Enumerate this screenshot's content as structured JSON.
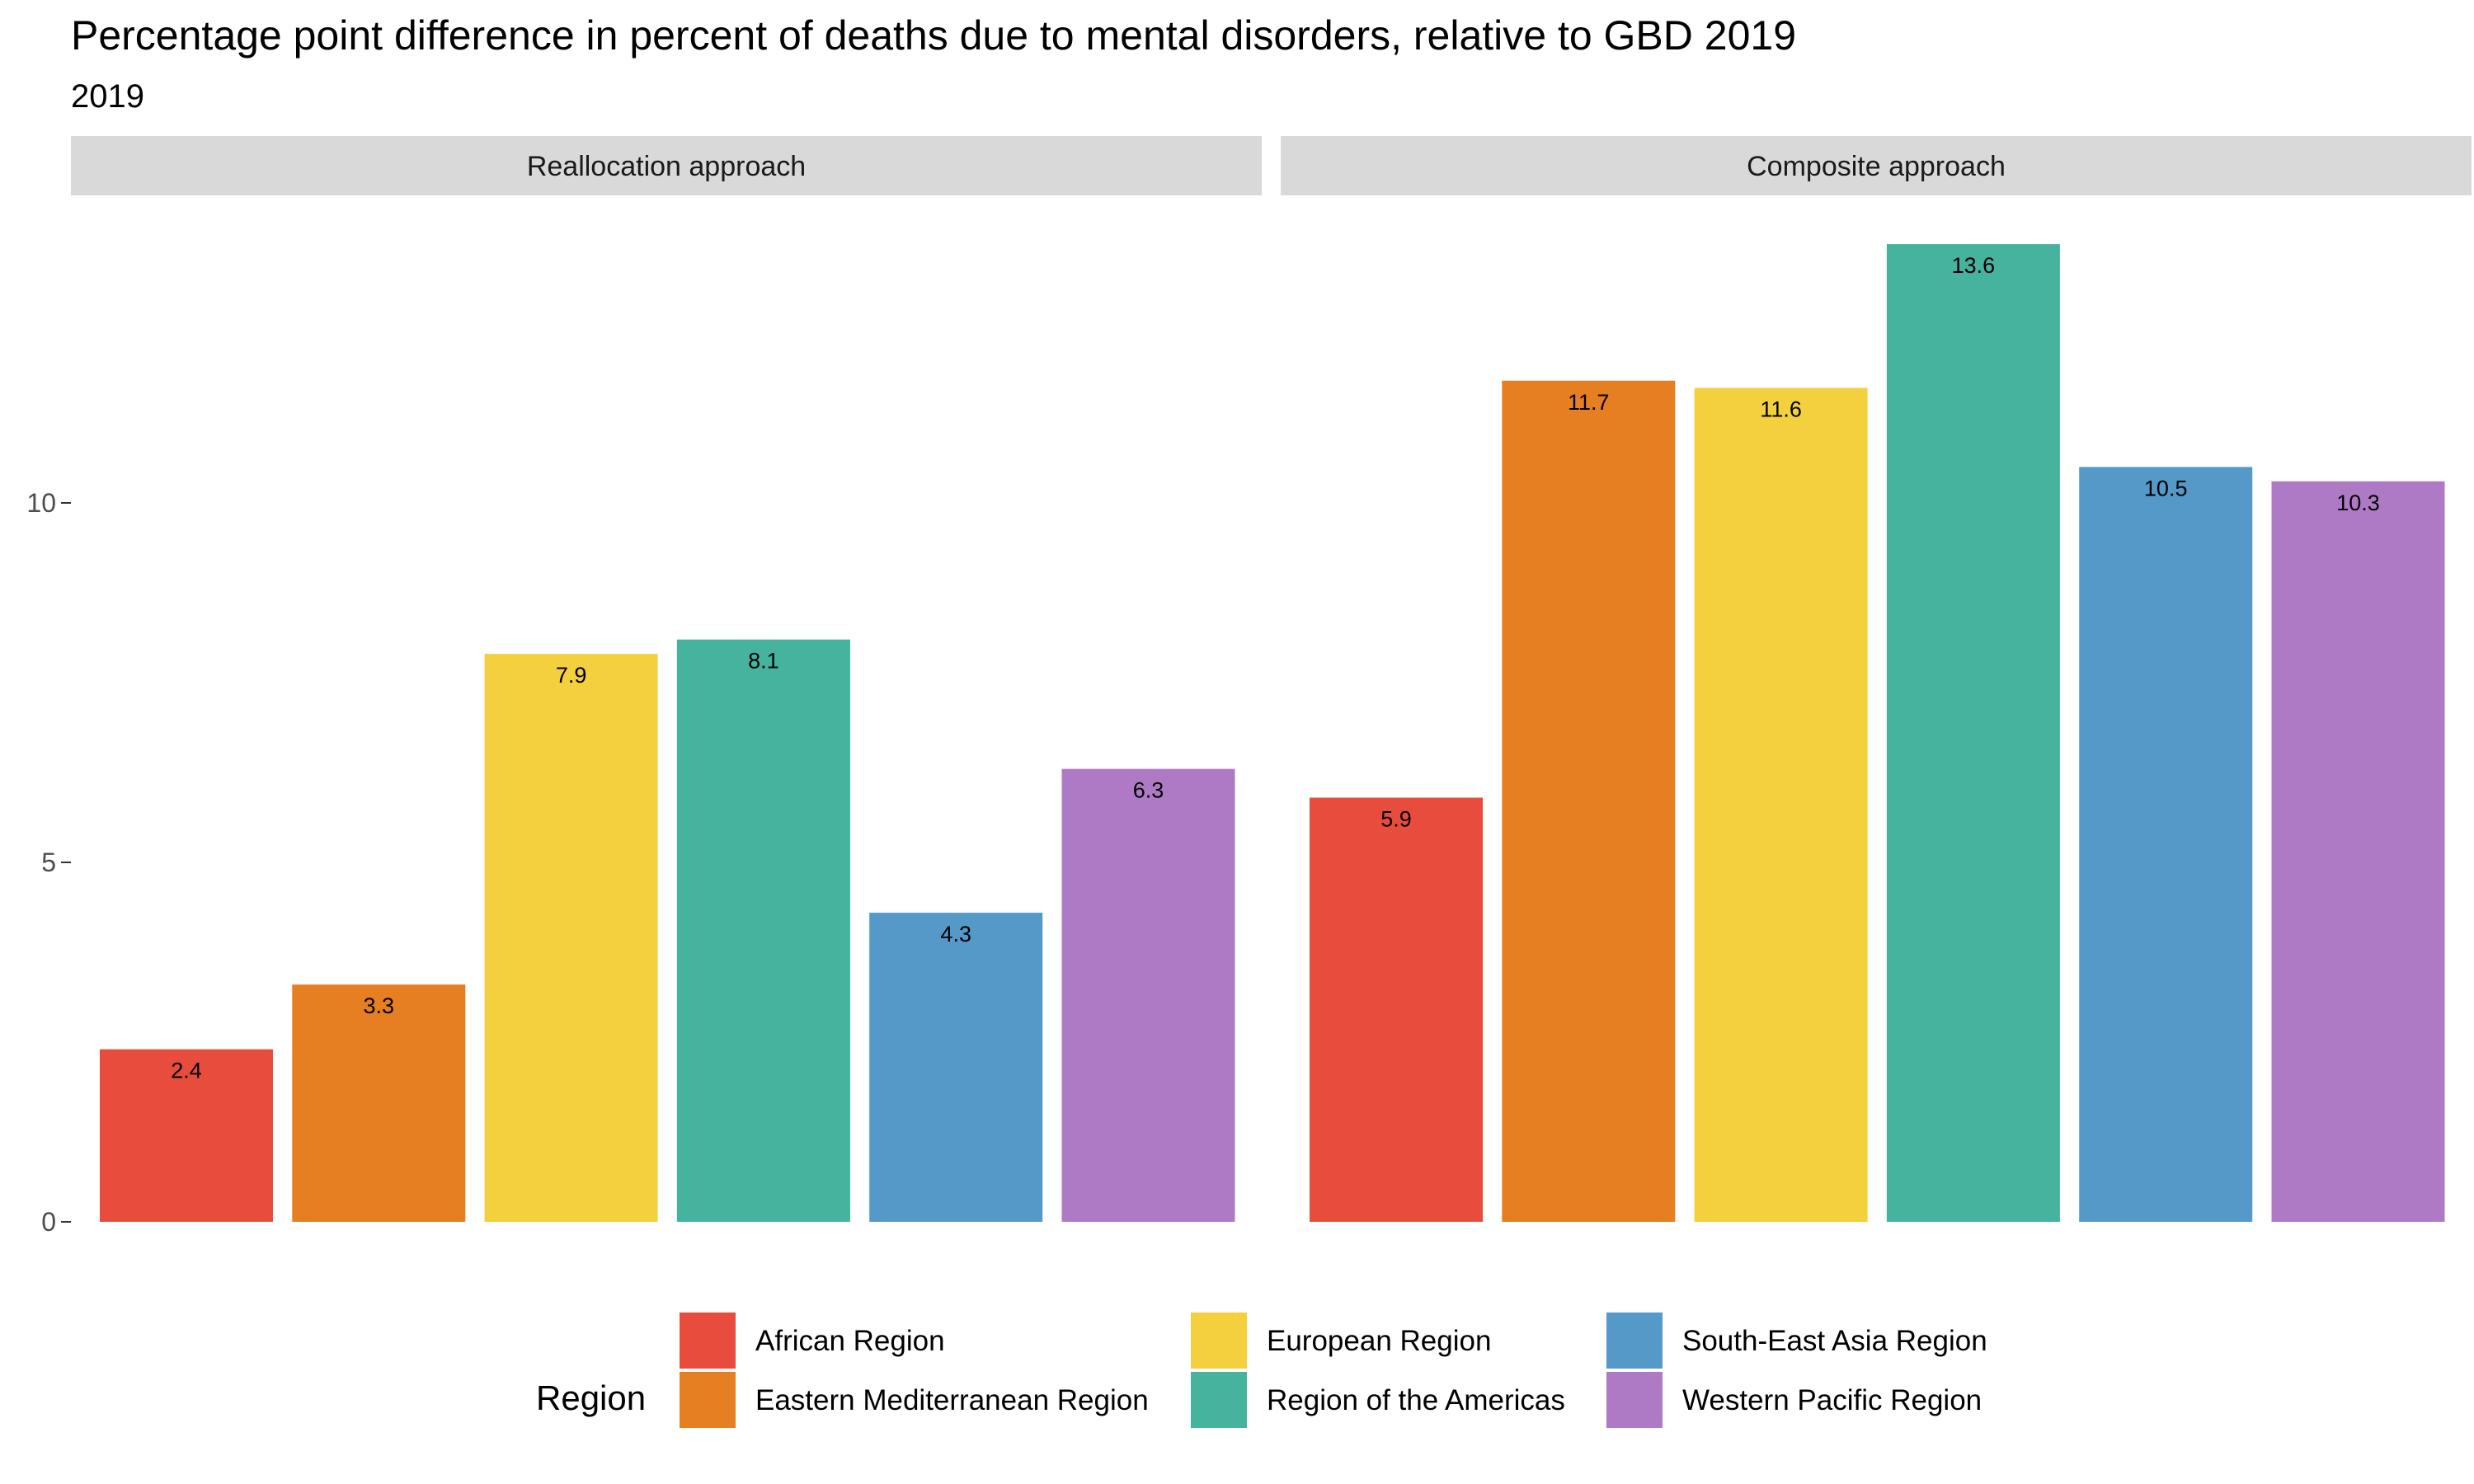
{
  "chart_data": {
    "type": "bar",
    "title": "Percentage point difference in percent of deaths due to mental disorders, relative to GBD 2019",
    "subtitle": "2019",
    "xlabel": "",
    "ylabel": "",
    "ylim": [
      0,
      14
    ],
    "yticks": [
      0,
      5,
      10
    ],
    "grid": false,
    "legend_position": "bottom",
    "legend_title": "Region",
    "categories": [
      "African Region",
      "Eastern Mediterranean Region",
      "European Region",
      "Region of the Americas",
      "South-East Asia Region",
      "Western Pacific Region"
    ],
    "colors": [
      "#E74C3C",
      "#E67E22",
      "#F4D03F",
      "#45B39D",
      "#5499C7",
      "#AF7AC5"
    ],
    "panels": [
      {
        "name": "Reallocation approach",
        "values": [
          2.4,
          3.3,
          7.9,
          8.1,
          4.3,
          6.3
        ],
        "labels": [
          "2.4",
          "3.3",
          "7.9",
          "8.1",
          "4.3",
          "6.3"
        ]
      },
      {
        "name": "Composite approach",
        "values": [
          5.9,
          11.7,
          11.6,
          13.6,
          10.5,
          10.3
        ],
        "labels": [
          "5.9",
          "11.7",
          "11.6",
          "13.6",
          "10.5",
          "10.3"
        ]
      }
    ]
  }
}
